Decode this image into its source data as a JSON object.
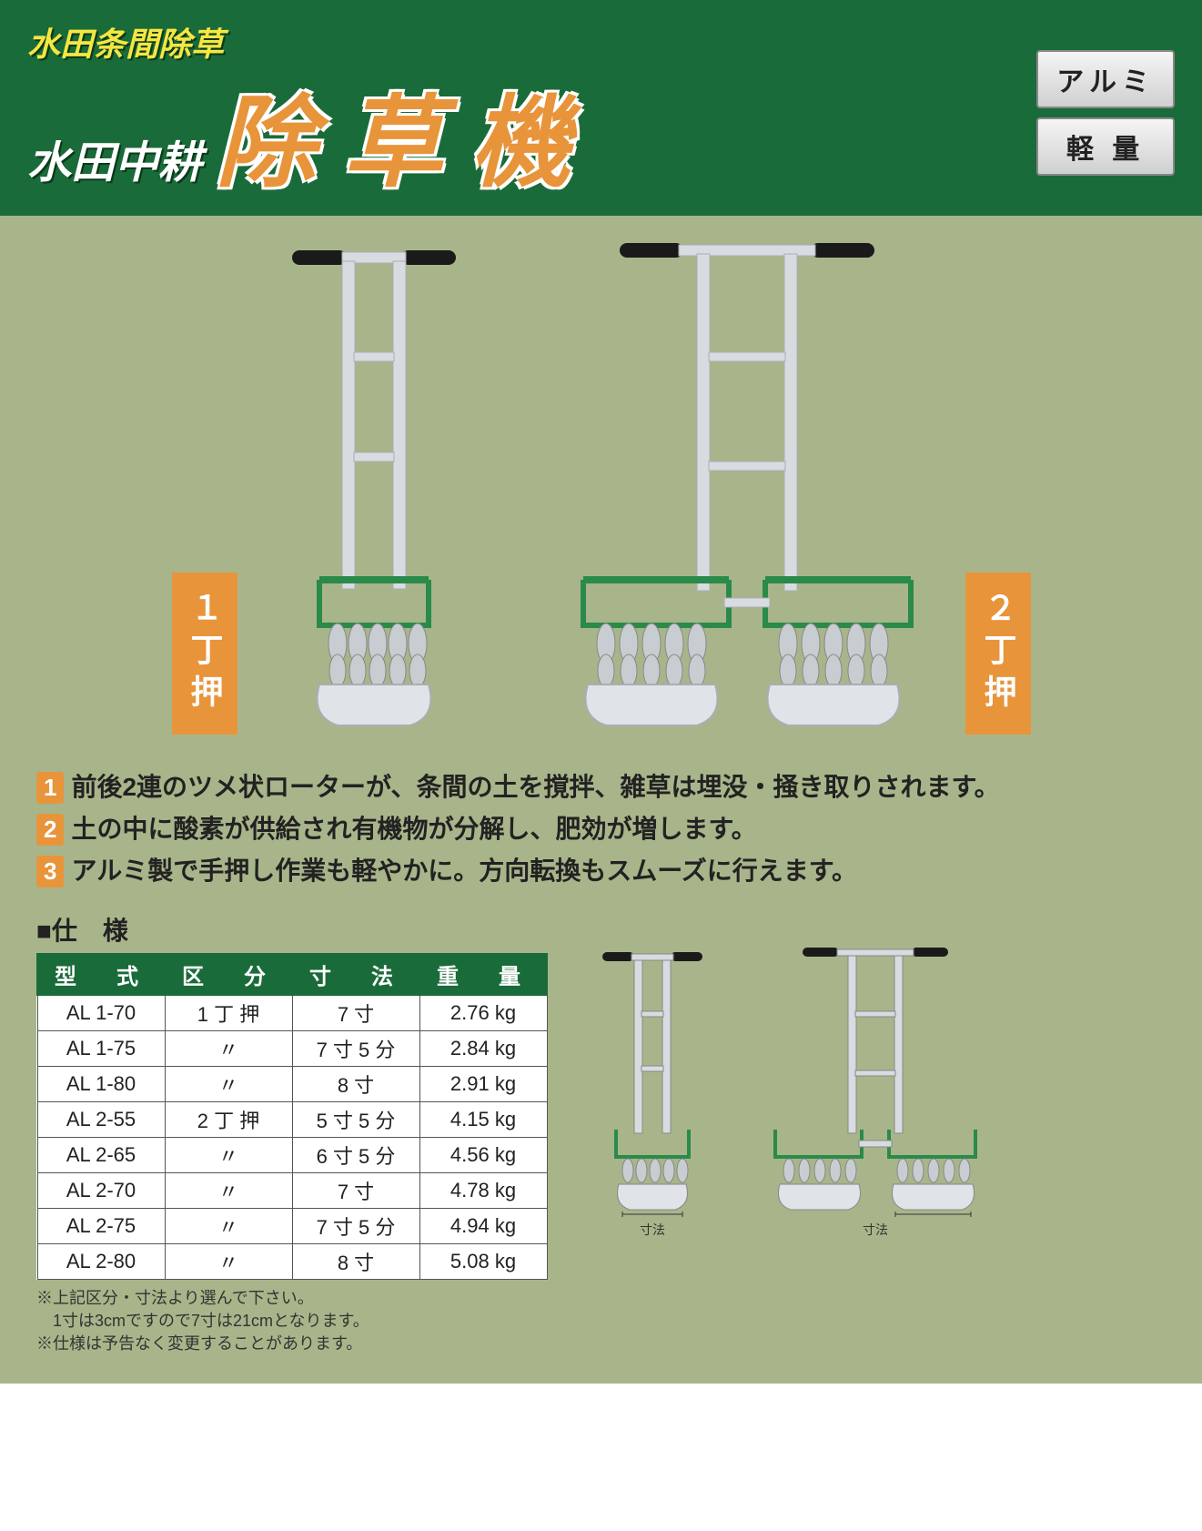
{
  "header": {
    "subtitle_top": "水田条間除草",
    "subtitle_main": "水田中耕",
    "main_title": "除草機",
    "badges": [
      "アルミ",
      "軽 量"
    ]
  },
  "hero": {
    "label_left": "１丁押",
    "label_right": "２丁押"
  },
  "features": [
    {
      "num": "1",
      "text": "前後2連のツメ状ローターが、条間の土を撹拌、雑草は埋没・掻き取りされます。"
    },
    {
      "num": "2",
      "text": "土の中に酸素が供給され有機物が分解し、肥効が増します。"
    },
    {
      "num": "3",
      "text": "アルミ製で手押し作業も軽やかに。方向転換もスムーズに行えます。"
    }
  ],
  "spec": {
    "title": "■仕　様",
    "columns": [
      "型　式",
      "区　分",
      "寸　法",
      "重　量"
    ],
    "rows": [
      [
        "AL 1-70",
        "1 丁 押",
        "7 寸",
        "2.76 kg"
      ],
      [
        "AL 1-75",
        "〃",
        "7 寸 5 分",
        "2.84 kg"
      ],
      [
        "AL 1-80",
        "〃",
        "8 寸",
        "2.91 kg"
      ],
      [
        "AL 2-55",
        "2 丁 押",
        "5 寸 5 分",
        "4.15 kg"
      ],
      [
        "AL 2-65",
        "〃",
        "6 寸 5 分",
        "4.56 kg"
      ],
      [
        "AL 2-70",
        "〃",
        "7 寸",
        "4.78 kg"
      ],
      [
        "AL 2-75",
        "〃",
        "7 寸 5 分",
        "4.94 kg"
      ],
      [
        "AL 2-80",
        "〃",
        "8 寸",
        "5.08 kg"
      ]
    ],
    "notes": [
      "※上記区分・寸法より選んで下さい。",
      "　1寸は3cmですので7寸は21cmとなります。",
      "※仕様は予告なく変更することがあります。"
    ],
    "dim_label": "寸法"
  },
  "colors": {
    "header_bg": "#1a6b3a",
    "body_bg": "#a8b58a",
    "accent": "#e8943a",
    "subtitle_yellow": "#f5e642",
    "metal": "#d8dce0",
    "metal_dark": "#a8aeb4",
    "handle_black": "#1a1a1a",
    "guard_green": "#2a8a4a"
  }
}
